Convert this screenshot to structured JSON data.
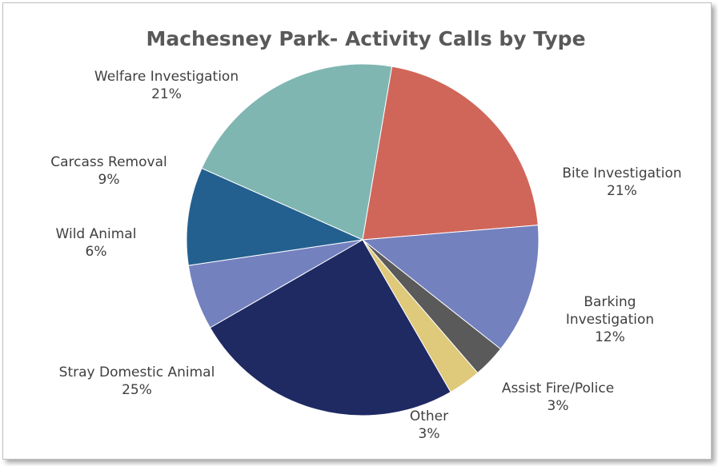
{
  "chart_data": {
    "type": "pie",
    "title": "Machesney Park- Activity Calls by Type",
    "slices": [
      {
        "name": "Welfare Investigation",
        "label": "21%",
        "value": 21,
        "color": "#7fb6b2"
      },
      {
        "name": "Bite Investigation",
        "label": "21%",
        "value": 21,
        "color": "#d0665a"
      },
      {
        "name": "Barking Investigation",
        "label": "12%",
        "value": 12,
        "color": "#7481bf"
      },
      {
        "name": "Assist Fire/Police",
        "label": "3%",
        "value": 3,
        "color": "#5a5a5a"
      },
      {
        "name": "Other",
        "label": "3%",
        "value": 3,
        "color": "#dfc97a"
      },
      {
        "name": "Stray Domestic Animal",
        "label": "25%",
        "value": 25,
        "color": "#1f2a63"
      },
      {
        "name": "Wild Animal",
        "label": "6%",
        "value": 6,
        "color": "#7481bf"
      },
      {
        "name": "Carcass Removal",
        "label": "9%",
        "value": 9,
        "color": "#24608f"
      }
    ],
    "legend": "none"
  }
}
